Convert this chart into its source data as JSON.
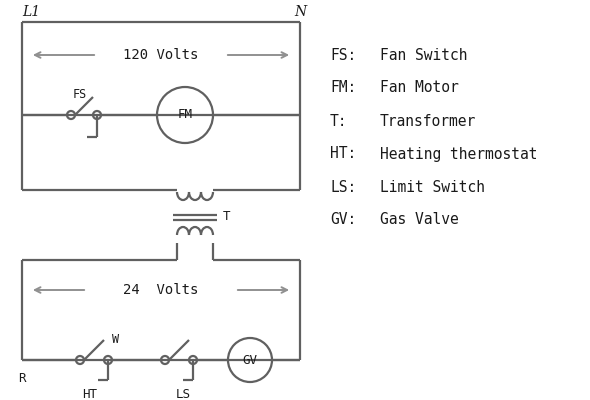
{
  "background_color": "#ffffff",
  "line_color": "#606060",
  "arrow_color": "#909090",
  "text_color": "#1a1a1a",
  "legend_items": [
    [
      "FS:",
      "Fan Switch"
    ],
    [
      "FM:",
      "Fan Motor"
    ],
    [
      "T:",
      "Transformer"
    ],
    [
      "HT:",
      "Heating thermostat"
    ],
    [
      "LS:",
      "Limit Switch"
    ],
    [
      "GV:",
      "Gas Valve"
    ]
  ],
  "fig_width": 5.9,
  "fig_height": 4.0,
  "dpi": 100
}
